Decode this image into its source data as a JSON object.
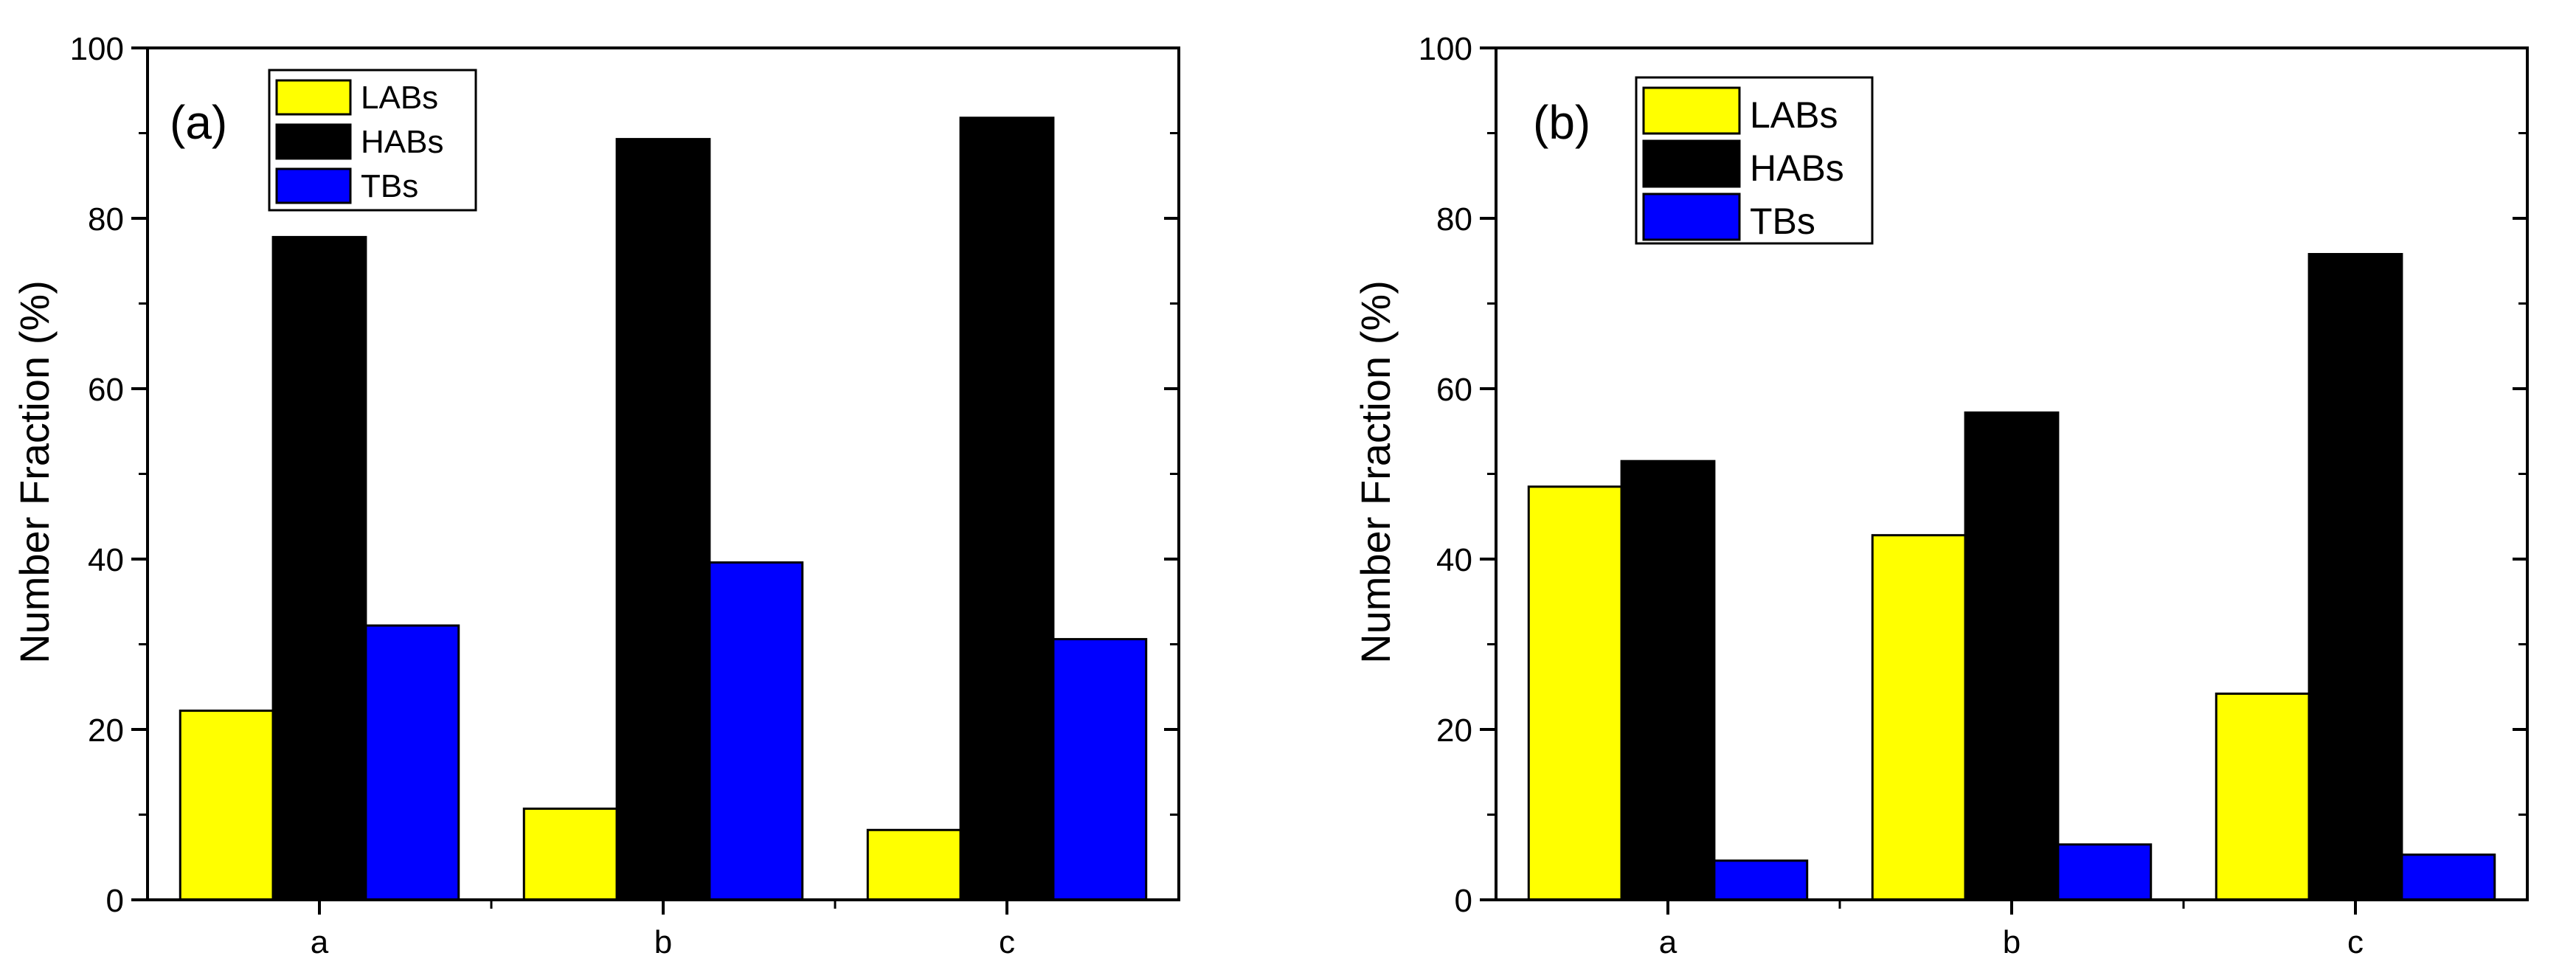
{
  "chart_data": [
    {
      "type": "bar",
      "panel_label": "(a)",
      "categories": [
        "a",
        "b",
        "c"
      ],
      "series": [
        {
          "name": "LABs",
          "color": "#ffff00",
          "values": [
            22.2,
            10.7,
            8.2
          ]
        },
        {
          "name": "HABs",
          "color": "#000000",
          "values": [
            77.8,
            89.3,
            91.8
          ]
        },
        {
          "name": "TBs",
          "color": "#0000ff",
          "values": [
            32.2,
            39.6,
            30.6
          ]
        }
      ],
      "title": "",
      "xlabel": "",
      "ylabel": "Number Fraction (%)",
      "ylim": [
        0,
        100
      ],
      "yticks": [
        0,
        20,
        40,
        60,
        80,
        100
      ],
      "grid": false,
      "legend_position": "top-left"
    },
    {
      "type": "bar",
      "panel_label": "(b)",
      "categories": [
        "a",
        "b",
        "c"
      ],
      "series": [
        {
          "name": "LABs",
          "color": "#ffff00",
          "values": [
            48.5,
            42.8,
            24.2
          ]
        },
        {
          "name": "HABs",
          "color": "#000000",
          "values": [
            51.5,
            57.2,
            75.8
          ]
        },
        {
          "name": "TBs",
          "color": "#0000ff",
          "values": [
            4.6,
            6.5,
            5.3
          ]
        }
      ],
      "title": "",
      "xlabel": "",
      "ylabel": "Number Fraction (%)",
      "ylim": [
        0,
        100
      ],
      "yticks": [
        0,
        20,
        40,
        60,
        80,
        100
      ],
      "grid": false,
      "legend_position": "top-left"
    }
  ]
}
